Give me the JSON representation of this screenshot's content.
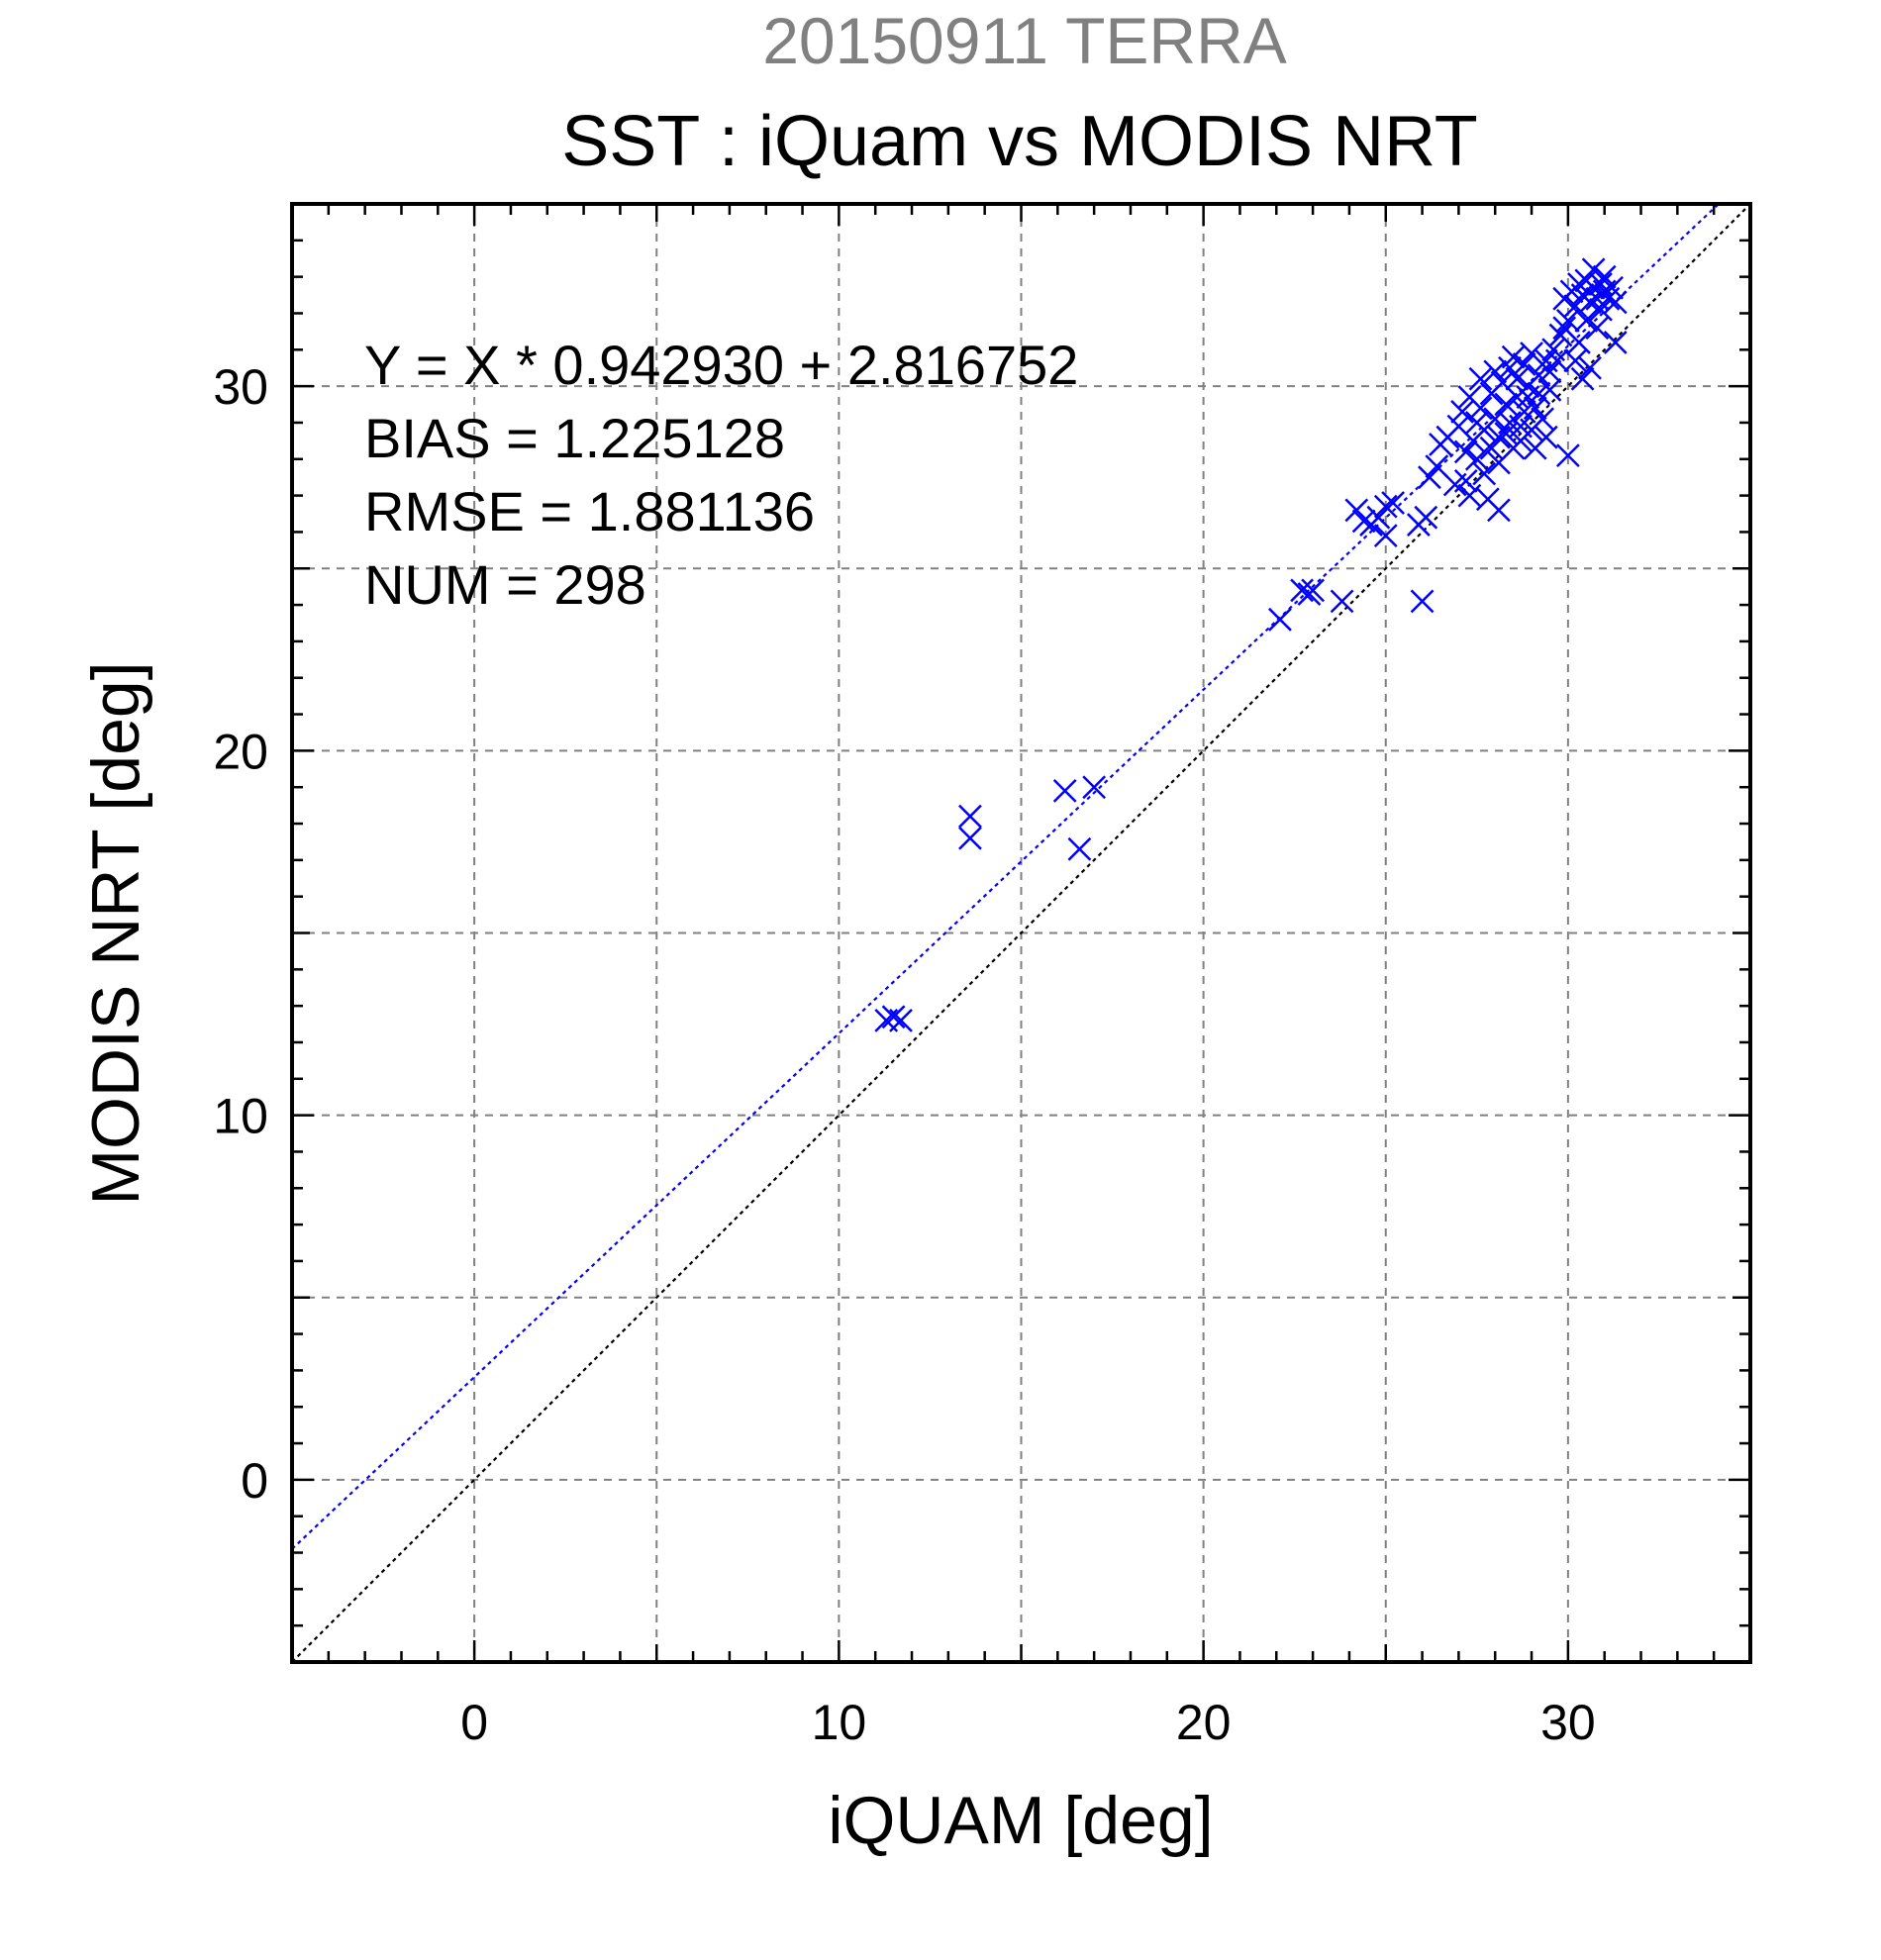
{
  "chart_data": {
    "type": "scatter",
    "subtitle": "20150911 TERRA",
    "title": "SST : iQuam vs MODIS NRT",
    "xlabel": "iQUAM [deg]",
    "ylabel": "MODIS NRT [deg]",
    "xlim": [
      -5,
      35
    ],
    "ylim": [
      -5,
      35
    ],
    "xticks": [
      0,
      10,
      20,
      30
    ],
    "yticks": [
      0,
      10,
      20,
      30
    ],
    "grid": true,
    "stats": {
      "equation": "Y = X * 0.942930 + 2.816752",
      "bias": "BIAS = 1.225128",
      "rmse": "RMSE = 1.881136",
      "num": "NUM = 298"
    },
    "fit_line": {
      "slope": 0.94293,
      "intercept": 2.816752,
      "color": "#0000ff"
    },
    "identity_line": {
      "slope": 1,
      "intercept": 0,
      "color": "#000000"
    },
    "marker_color": "#0000ff",
    "series": [
      {
        "marker": "x",
        "points": [
          [
            11.3,
            12.6
          ],
          [
            11.5,
            12.7
          ],
          [
            11.7,
            12.6
          ],
          [
            13.6,
            18.2
          ],
          [
            13.6,
            17.6
          ],
          [
            16.2,
            18.9
          ],
          [
            16.6,
            17.3
          ],
          [
            17.0,
            19.0
          ],
          [
            22.1,
            23.6
          ],
          [
            22.7,
            24.4
          ],
          [
            22.9,
            24.3
          ],
          [
            23.0,
            24.4
          ],
          [
            23.8,
            24.1
          ],
          [
            24.2,
            26.6
          ],
          [
            24.4,
            26.3
          ],
          [
            24.6,
            26.2
          ],
          [
            24.8,
            26.4
          ],
          [
            25.0,
            26.7
          ],
          [
            25.2,
            26.8
          ],
          [
            25.0,
            25.9
          ],
          [
            25.9,
            26.2
          ],
          [
            26.1,
            26.4
          ],
          [
            26.0,
            24.1
          ],
          [
            26.2,
            27.5
          ],
          [
            26.4,
            27.8
          ],
          [
            26.5,
            28.4
          ],
          [
            26.7,
            28.6
          ],
          [
            26.9,
            27.3
          ],
          [
            27.0,
            28.9
          ],
          [
            27.1,
            29.3
          ],
          [
            27.2,
            28.2
          ],
          [
            27.2,
            27.4
          ],
          [
            27.3,
            27.0
          ],
          [
            27.3,
            29.7
          ],
          [
            27.4,
            28.5
          ],
          [
            27.5,
            28.0
          ],
          [
            27.5,
            29.0
          ],
          [
            27.6,
            29.4
          ],
          [
            27.6,
            30.2
          ],
          [
            27.7,
            28.8
          ],
          [
            27.7,
            27.6
          ],
          [
            27.8,
            26.9
          ],
          [
            27.9,
            28.3
          ],
          [
            27.9,
            29.8
          ],
          [
            28.0,
            30.4
          ],
          [
            28.0,
            29.1
          ],
          [
            28.1,
            28.6
          ],
          [
            28.1,
            27.9
          ],
          [
            28.1,
            26.6
          ],
          [
            28.2,
            30.1
          ],
          [
            28.3,
            29.5
          ],
          [
            28.3,
            28.7
          ],
          [
            28.4,
            30.5
          ],
          [
            28.4,
            29.0
          ],
          [
            28.5,
            28.3
          ],
          [
            28.5,
            30.8
          ],
          [
            28.6,
            29.7
          ],
          [
            28.6,
            30.2
          ],
          [
            28.7,
            28.9
          ],
          [
            28.7,
            28.5
          ],
          [
            28.8,
            30.6
          ],
          [
            28.8,
            29.3
          ],
          [
            28.9,
            30.0
          ],
          [
            28.9,
            29.7
          ],
          [
            29.0,
            28.8
          ],
          [
            29.0,
            30.9
          ],
          [
            29.1,
            29.4
          ],
          [
            29.1,
            28.3
          ],
          [
            29.2,
            30.3
          ],
          [
            29.2,
            29.8
          ],
          [
            29.3,
            29.1
          ],
          [
            29.4,
            30.7
          ],
          [
            29.4,
            28.6
          ],
          [
            29.5,
            29.9
          ],
          [
            29.5,
            30.4
          ],
          [
            29.6,
            31.0
          ],
          [
            29.7,
            30.7
          ],
          [
            29.8,
            31.4
          ],
          [
            29.9,
            31.6
          ],
          [
            29.9,
            32.4
          ],
          [
            30.0,
            28.1
          ],
          [
            30.0,
            31.8
          ],
          [
            30.1,
            32.6
          ],
          [
            30.2,
            32.2
          ],
          [
            30.2,
            30.7
          ],
          [
            30.3,
            32.8
          ],
          [
            30.3,
            31.2
          ],
          [
            30.4,
            32.5
          ],
          [
            30.4,
            30.2
          ],
          [
            30.5,
            32.9
          ],
          [
            30.5,
            31.8
          ],
          [
            30.6,
            32.3
          ],
          [
            30.6,
            30.5
          ],
          [
            30.7,
            32.7
          ],
          [
            30.7,
            33.2
          ],
          [
            30.8,
            32.4
          ],
          [
            30.8,
            31.6
          ],
          [
            30.9,
            32.8
          ],
          [
            30.9,
            32.1
          ],
          [
            31.0,
            32.6
          ],
          [
            31.0,
            33.0
          ],
          [
            31.1,
            32.4
          ],
          [
            31.2,
            32.7
          ],
          [
            31.3,
            32.3
          ],
          [
            31.3,
            31.2
          ]
        ]
      }
    ]
  }
}
